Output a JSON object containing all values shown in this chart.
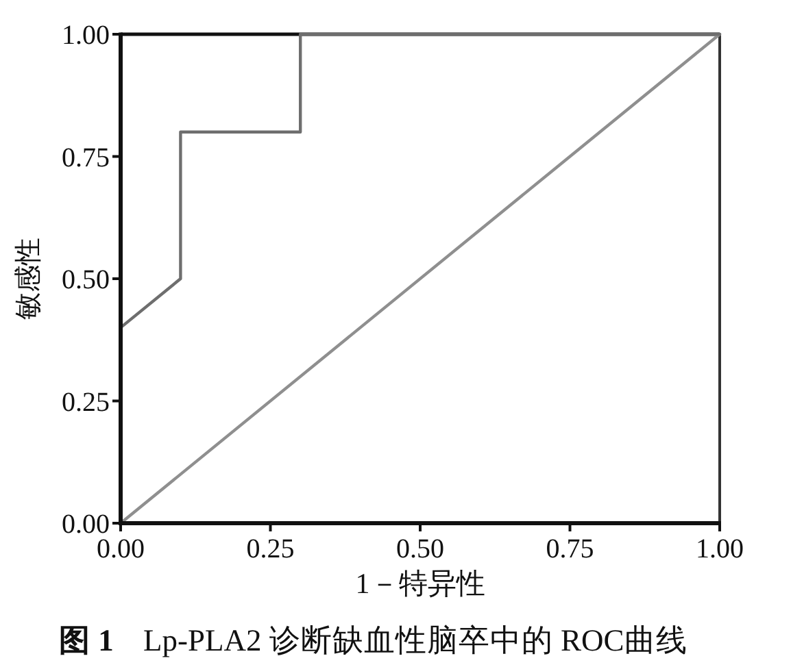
{
  "chart_data": {
    "type": "line",
    "xlabel": "1－特异性",
    "ylabel": "敏感性",
    "series": [
      {
        "x": [
          0,
          0.1,
          0.1,
          0.3,
          0.3,
          1
        ],
        "values": [
          0.4,
          0.5,
          0.8,
          0.8,
          1,
          1
        ],
        "color": "#6e6e6e"
      },
      {
        "x": [
          0,
          1
        ],
        "values": [
          0,
          1
        ],
        "color": "#8f8f8f"
      }
    ],
    "xlim": [
      0,
      1
    ],
    "ylim": [
      0,
      1
    ],
    "xticks": [
      {
        "value": 0,
        "label": "0.00"
      },
      {
        "value": 0.25,
        "label": "0.25"
      },
      {
        "value": 0.5,
        "label": "0.50"
      },
      {
        "value": 0.75,
        "label": "0.75"
      },
      {
        "value": 1,
        "label": "1.00"
      }
    ],
    "yticks": [
      {
        "value": 0,
        "label": "0.00"
      },
      {
        "value": 0.25,
        "label": "0.25"
      },
      {
        "value": 0.5,
        "label": "0.50"
      },
      {
        "value": 0.75,
        "label": "0.75"
      },
      {
        "value": 1,
        "label": "1.00"
      }
    ],
    "line_style": "solid",
    "annotations": [
      "**图 1** Lp-PLA2 诊断缺血性脑卒中的 ROC曲线"
    ]
  }
}
